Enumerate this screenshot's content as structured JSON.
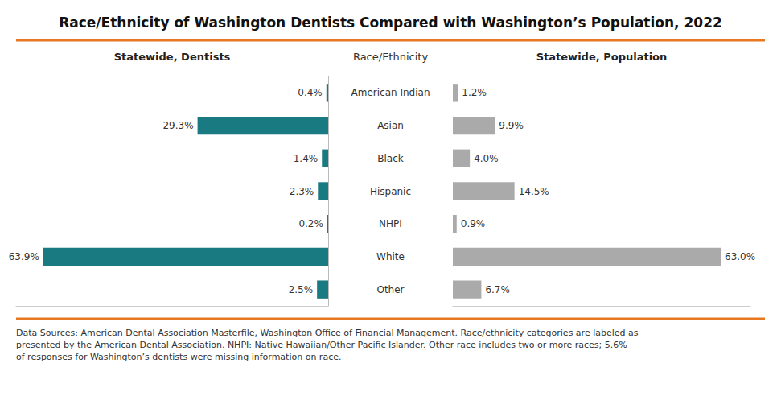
{
  "chart_data": {
    "type": "bar",
    "orientation": "horizontal",
    "title": "Race/Ethnicity of Washington Dentists Compared with Washington’s Population, 2022",
    "ylabel": "Race/Ethnicity",
    "categories": [
      "American Indian",
      "Asian",
      "Black",
      "Hispanic",
      "NHPI",
      "White",
      "Other"
    ],
    "series": [
      {
        "name": "Statewide, Dentists",
        "color": "#1a7a82",
        "values": [
          0.4,
          29.3,
          1.4,
          2.3,
          0.2,
          63.9,
          2.5
        ],
        "value_labels": [
          "0.4%",
          "29.3%",
          "1.4%",
          "2.3%",
          "0.2%",
          "63.9%",
          "2.5%"
        ]
      },
      {
        "name": "Statewide, Population",
        "color": "#aaaaaa",
        "values": [
          1.2,
          9.9,
          4.0,
          14.5,
          0.9,
          63.0,
          6.7
        ],
        "value_labels": [
          "1.2%",
          "9.9%",
          "4.0%",
          "14.5%",
          "0.9%",
          "63.0%",
          "6.7%"
        ]
      }
    ],
    "xlim": [
      0,
      70
    ],
    "grid": false,
    "data_labels": true,
    "tick_labels": "y",
    "annotations": [
      "Data Sources: American Dental Association Masterfile, Washington Office of Financial Management. Race/ethnicity categories are labeled as\npresented by the American Dental Association. NHPI: Native Hawaiian/Other Pacific Islander. Other race includes two or more races; 5.6%\nof responses for Washington’s dentists were missing information on race."
    ]
  }
}
